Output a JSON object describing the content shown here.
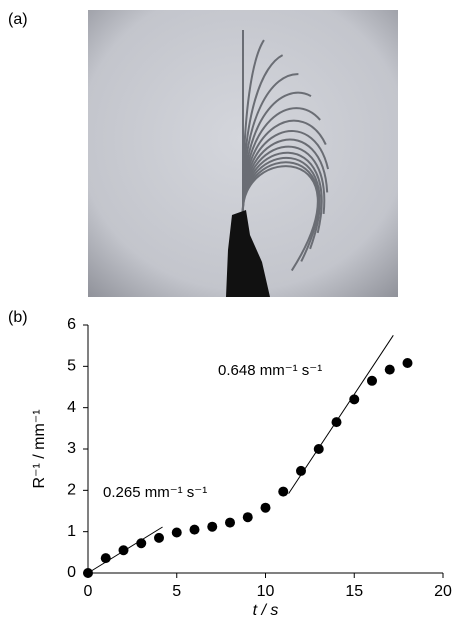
{
  "photo_label": "(a)",
  "chart_data": {
    "type": "scatter",
    "panel_label": "(b)",
    "x_label": "t / s",
    "y_label": "R⁻¹ / mm⁻¹",
    "x": [
      0,
      1,
      2,
      3,
      4,
      5,
      6,
      7,
      8,
      9,
      10,
      11,
      12,
      13,
      14,
      15,
      16,
      17,
      18
    ],
    "values": [
      0,
      0.36,
      0.55,
      0.72,
      0.85,
      0.98,
      1.05,
      1.12,
      1.22,
      1.35,
      1.58,
      1.97,
      2.47,
      3.0,
      3.65,
      4.2,
      4.65,
      4.92,
      5.08
    ],
    "color": "#000000",
    "xlim": [
      0,
      20
    ],
    "xticks": [
      0,
      5,
      10,
      15,
      20
    ],
    "ylim": [
      0,
      6
    ],
    "yticks": [
      0,
      1,
      2,
      3,
      4,
      5,
      6
    ],
    "fits": [
      {
        "label": "0.265 mm⁻¹  s⁻¹",
        "x": [
          0,
          4.2
        ],
        "values": [
          0,
          1.113
        ]
      },
      {
        "label": "0.648 mm⁻¹  s⁻¹",
        "x": [
          11.3,
          17.2
        ],
        "values": [
          1.92,
          5.75
        ]
      }
    ]
  }
}
